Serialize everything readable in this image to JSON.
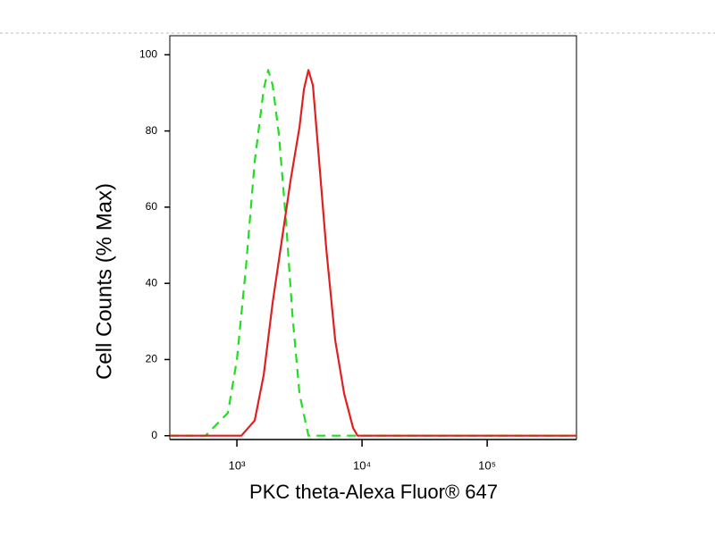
{
  "chart_data": {
    "type": "line",
    "xlabel": "PKC theta-Alexa Fluor® 647",
    "ylabel": "Cell Counts (% Max)",
    "xscale": "log",
    "xlim": [
      291,
      517000
    ],
    "ylim": [
      -1,
      105
    ],
    "xticks": [
      {
        "value": 1000,
        "label": "10³"
      },
      {
        "value": 10000,
        "label": "10⁴"
      },
      {
        "value": 100000,
        "label": "10⁵"
      }
    ],
    "yticks": [
      0,
      20,
      40,
      60,
      80,
      100
    ],
    "series": [
      {
        "color": "#22dd22",
        "line_style": "dashed",
        "x": [
          291,
          562,
          848,
          1000,
          1179,
          1389,
          1638,
          1778,
          1931,
          2167,
          2471,
          2773,
          3162,
          3728,
          517000
        ],
        "values": [
          0,
          0,
          6,
          20,
          44,
          72,
          91,
          96,
          92,
          79,
          56,
          32,
          11,
          0,
          0
        ]
      },
      {
        "color": "#e02020",
        "line_style": "solid",
        "x": [
          291,
          1086,
          1389,
          1638,
          1931,
          2276,
          2683,
          3162,
          3433,
          3728,
          4047,
          4540,
          5179,
          6105,
          7197,
          8483,
          9210,
          517000
        ],
        "values": [
          0,
          0,
          4,
          16,
          35,
          51,
          67,
          81,
          91,
          96,
          92,
          72,
          49,
          25,
          11,
          2,
          0,
          0
        ]
      }
    ]
  }
}
